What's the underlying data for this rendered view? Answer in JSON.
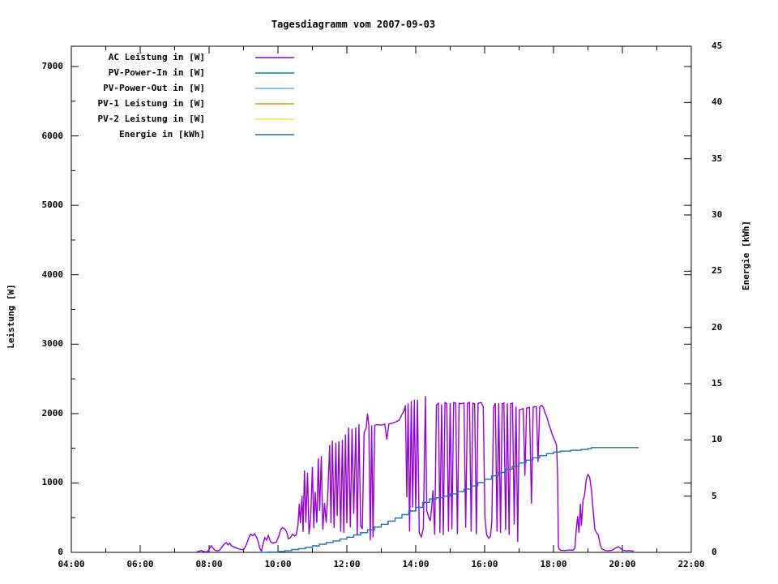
{
  "chart_data": {
    "type": "line",
    "title": "Tagesdiagramm vom 2007-09-03",
    "x_axis": {
      "unit": "time",
      "range_hours": [
        4,
        22
      ],
      "major_tick_hours": 2,
      "minor_tick_hours": 1,
      "tick_labels": [
        "04:00",
        "06:00",
        "08:00",
        "10:00",
        "12:00",
        "14:00",
        "16:00",
        "18:00",
        "20:00",
        "22:00"
      ]
    },
    "y1_axis": {
      "label": "Leistung [W]",
      "range": [
        0,
        7000
      ],
      "major_tick": 1000,
      "minor_tick": 500,
      "tick_labels": [
        "0",
        "1000",
        "2000",
        "3000",
        "4000",
        "5000",
        "6000",
        "7000"
      ]
    },
    "y2_axis": {
      "label": "Energie [kWh]",
      "range": [
        0,
        45
      ],
      "major_tick": 5,
      "tick_labels": [
        "0",
        "5",
        "10",
        "15",
        "20",
        "25",
        "30",
        "35",
        "40",
        "45"
      ]
    },
    "legend_position": "top-left-inside",
    "grid": false,
    "series": [
      {
        "name": "AC Leistung in [W]",
        "color": "#9400d3",
        "axis": "y1",
        "step": false,
        "points": [
          [
            7.63,
            2
          ],
          [
            7.7,
            18
          ],
          [
            7.78,
            25
          ],
          [
            7.85,
            12
          ],
          [
            7.95,
            8
          ],
          [
            8.02,
            60
          ],
          [
            8.06,
            95
          ],
          [
            8.1,
            70
          ],
          [
            8.15,
            38
          ],
          [
            8.22,
            22
          ],
          [
            8.3,
            28
          ],
          [
            8.4,
            95
          ],
          [
            8.45,
            125
          ],
          [
            8.5,
            140
          ],
          [
            8.55,
            108
          ],
          [
            8.6,
            132
          ],
          [
            8.65,
            95
          ],
          [
            8.72,
            78
          ],
          [
            8.8,
            62
          ],
          [
            8.9,
            44
          ],
          [
            9.0,
            36
          ],
          [
            9.08,
            110
          ],
          [
            9.15,
            205
          ],
          [
            9.2,
            262
          ],
          [
            9.27,
            238
          ],
          [
            9.32,
            268
          ],
          [
            9.38,
            215
          ],
          [
            9.43,
            148
          ],
          [
            9.47,
            58
          ],
          [
            9.52,
            16
          ],
          [
            9.57,
            125
          ],
          [
            9.62,
            212
          ],
          [
            9.67,
            178
          ],
          [
            9.72,
            242
          ],
          [
            9.78,
            158
          ],
          [
            9.85,
            132
          ],
          [
            9.95,
            148
          ],
          [
            10.02,
            225
          ],
          [
            10.08,
            330
          ],
          [
            10.13,
            355
          ],
          [
            10.2,
            338
          ],
          [
            10.25,
            298
          ],
          [
            10.3,
            196
          ],
          [
            10.36,
            212
          ],
          [
            10.42,
            262
          ],
          [
            10.48,
            236
          ],
          [
            10.53,
            255
          ],
          [
            10.58,
            380
          ],
          [
            10.62,
            700
          ],
          [
            10.65,
            420
          ],
          [
            10.7,
            815
          ],
          [
            10.73,
            295
          ],
          [
            10.77,
            1180
          ],
          [
            10.81,
            430
          ],
          [
            10.86,
            1150
          ],
          [
            10.9,
            262
          ],
          [
            10.95,
            515
          ],
          [
            11.0,
            1230
          ],
          [
            11.04,
            348
          ],
          [
            11.08,
            872
          ],
          [
            11.13,
            425
          ],
          [
            11.17,
            1352
          ],
          [
            11.21,
            598
          ],
          [
            11.26,
            1390
          ],
          [
            11.3,
            328
          ],
          [
            11.35,
            712
          ],
          [
            11.4,
            424
          ],
          [
            11.45,
            880
          ],
          [
            11.5,
            1545
          ],
          [
            11.54,
            420
          ],
          [
            11.58,
            1612
          ],
          [
            11.63,
            352
          ],
          [
            11.68,
            1580
          ],
          [
            11.72,
            525
          ],
          [
            11.77,
            1598
          ],
          [
            11.82,
            298
          ],
          [
            11.87,
            1622
          ],
          [
            11.91,
            282
          ],
          [
            11.96,
            1700
          ],
          [
            12.0,
            420
          ],
          [
            12.05,
            1798
          ],
          [
            12.1,
            362
          ],
          [
            12.15,
            1782
          ],
          [
            12.2,
            558
          ],
          [
            12.26,
            1800
          ],
          [
            12.3,
            242
          ],
          [
            12.35,
            1848
          ],
          [
            12.4,
            385
          ],
          [
            12.45,
            338
          ],
          [
            12.5,
            1725
          ],
          [
            12.56,
            1792
          ],
          [
            12.6,
            2000
          ],
          [
            12.64,
            1820
          ],
          [
            12.68,
            172
          ],
          [
            12.72,
            1830
          ],
          [
            12.76,
            218
          ],
          [
            12.81,
            1832
          ],
          [
            12.9,
            1840
          ],
          [
            13.0,
            1832
          ],
          [
            13.1,
            1848
          ],
          [
            13.16,
            1625
          ],
          [
            13.22,
            1850
          ],
          [
            13.32,
            1862
          ],
          [
            13.42,
            1880
          ],
          [
            13.52,
            1905
          ],
          [
            13.6,
            1988
          ],
          [
            13.66,
            2042
          ],
          [
            13.7,
            2118
          ],
          [
            13.74,
            795
          ],
          [
            13.78,
            2148
          ],
          [
            13.82,
            302
          ],
          [
            13.87,
            2180
          ],
          [
            13.91,
            648
          ],
          [
            13.96,
            2198
          ],
          [
            14.0,
            598
          ],
          [
            14.05,
            2200
          ],
          [
            14.1,
            282
          ],
          [
            14.16,
            222
          ],
          [
            14.22,
            348
          ],
          [
            14.28,
            2252
          ],
          [
            14.32,
            598
          ],
          [
            14.37,
            518
          ],
          [
            14.42,
            452
          ],
          [
            14.46,
            618
          ],
          [
            14.5,
            895
          ],
          [
            14.55,
            252
          ],
          [
            14.6,
            2122
          ],
          [
            14.66,
            2148
          ],
          [
            14.7,
            282
          ],
          [
            14.75,
            2132
          ],
          [
            14.8,
            248
          ],
          [
            14.85,
            2158
          ],
          [
            14.9,
            2142
          ],
          [
            14.95,
            298
          ],
          [
            15.0,
            2152
          ],
          [
            15.05,
            332
          ],
          [
            15.1,
            2158
          ],
          [
            15.16,
            2150
          ],
          [
            15.21,
            262
          ],
          [
            15.26,
            2148
          ],
          [
            15.32,
            2142
          ],
          [
            15.4,
            2152
          ],
          [
            15.45,
            352
          ],
          [
            15.5,
            2148
          ],
          [
            15.56,
            2160
          ],
          [
            15.61,
            298
          ],
          [
            15.66,
            2150
          ],
          [
            15.71,
            2140
          ],
          [
            15.76,
            262
          ],
          [
            15.81,
            2148
          ],
          [
            15.9,
            2160
          ],
          [
            15.96,
            2098
          ],
          [
            16.01,
            498
          ],
          [
            16.06,
            252
          ],
          [
            16.12,
            202
          ],
          [
            16.17,
            232
          ],
          [
            16.21,
            452
          ],
          [
            16.26,
            2098
          ],
          [
            16.31,
            2148
          ],
          [
            16.36,
            302
          ],
          [
            16.41,
            2150
          ],
          [
            16.46,
            282
          ],
          [
            16.51,
            2142
          ],
          [
            16.56,
            2150
          ],
          [
            16.61,
            322
          ],
          [
            16.66,
            2148
          ],
          [
            16.71,
            252
          ],
          [
            16.76,
            2142
          ],
          [
            16.81,
            2150
          ],
          [
            16.86,
            402
          ],
          [
            16.91,
            2100
          ],
          [
            16.96,
            152
          ],
          [
            17.01,
            2052
          ],
          [
            17.06,
            2062
          ],
          [
            17.12,
            2072
          ],
          [
            17.17,
            1102
          ],
          [
            17.22,
            2078
          ],
          [
            17.3,
            2088
          ],
          [
            17.36,
            702
          ],
          [
            17.41,
            2092
          ],
          [
            17.5,
            2102
          ],
          [
            17.55,
            1302
          ],
          [
            17.6,
            2098
          ],
          [
            17.66,
            2118
          ],
          [
            17.71,
            2082
          ],
          [
            17.76,
            2002
          ],
          [
            17.81,
            1948
          ],
          [
            17.86,
            1852
          ],
          [
            17.91,
            1782
          ],
          [
            17.96,
            1702
          ],
          [
            18.01,
            1642
          ],
          [
            18.06,
            1582
          ],
          [
            18.09,
            1538
          ],
          [
            18.12,
            1098
          ],
          [
            18.14,
            78
          ],
          [
            18.17,
            42
          ],
          [
            18.22,
            30
          ],
          [
            18.32,
            26
          ],
          [
            18.42,
            32
          ],
          [
            18.52,
            34
          ],
          [
            18.57,
            30
          ],
          [
            18.62,
            62
          ],
          [
            18.66,
            322
          ],
          [
            18.7,
            522
          ],
          [
            18.74,
            282
          ],
          [
            18.78,
            700
          ],
          [
            18.81,
            382
          ],
          [
            18.86,
            752
          ],
          [
            18.9,
            822
          ],
          [
            18.95,
            1052
          ],
          [
            19.0,
            1122
          ],
          [
            19.05,
            1082
          ],
          [
            19.1,
            902
          ],
          [
            19.15,
            602
          ],
          [
            19.2,
            332
          ],
          [
            19.25,
            282
          ],
          [
            19.3,
            248
          ],
          [
            19.35,
            122
          ],
          [
            19.4,
            52
          ],
          [
            19.5,
            26
          ],
          [
            19.6,
            22
          ],
          [
            19.7,
            32
          ],
          [
            19.8,
            62
          ],
          [
            19.88,
            82
          ],
          [
            19.95,
            56
          ],
          [
            20.02,
            32
          ],
          [
            20.1,
            22
          ],
          [
            20.2,
            26
          ],
          [
            20.33,
            16
          ]
        ]
      },
      {
        "name": "PV-Power-In in [W]",
        "color": "#008b8b",
        "axis": "y1",
        "step": false,
        "points": []
      },
      {
        "name": "PV-Power-Out in [W]",
        "color": "#56b4e9",
        "axis": "y1",
        "step": false,
        "points": []
      },
      {
        "name": "PV-1 Leistung in [W]",
        "color": "#e69500",
        "axis": "y1",
        "step": false,
        "points": []
      },
      {
        "name": "PV-2 Leistung in [W]",
        "color": "#efe44f",
        "axis": "y1",
        "step": false,
        "points": []
      },
      {
        "name": "Energie in [kWh]",
        "color": "#1f6fb4",
        "axis": "y2",
        "step": true,
        "points": [
          [
            9.4,
            0
          ],
          [
            9.7,
            0.03
          ],
          [
            10.0,
            0.08
          ],
          [
            10.2,
            0.15
          ],
          [
            10.4,
            0.25
          ],
          [
            10.6,
            0.33
          ],
          [
            10.8,
            0.45
          ],
          [
            11.0,
            0.58
          ],
          [
            11.2,
            0.72
          ],
          [
            11.4,
            0.88
          ],
          [
            11.6,
            1.02
          ],
          [
            11.8,
            1.18
          ],
          [
            12.0,
            1.35
          ],
          [
            12.2,
            1.55
          ],
          [
            12.4,
            1.75
          ],
          [
            12.6,
            2.0
          ],
          [
            12.8,
            2.25
          ],
          [
            13.0,
            2.5
          ],
          [
            13.2,
            2.78
          ],
          [
            13.4,
            3.05
          ],
          [
            13.6,
            3.35
          ],
          [
            13.8,
            3.68
          ],
          [
            14.0,
            4.0
          ],
          [
            14.2,
            4.45
          ],
          [
            14.4,
            4.75
          ],
          [
            14.6,
            4.85
          ],
          [
            14.8,
            5.0
          ],
          [
            15.0,
            5.2
          ],
          [
            15.2,
            5.4
          ],
          [
            15.4,
            5.62
          ],
          [
            15.6,
            5.9
          ],
          [
            15.8,
            6.2
          ],
          [
            16.0,
            6.5
          ],
          [
            16.2,
            6.8
          ],
          [
            16.4,
            7.1
          ],
          [
            16.6,
            7.4
          ],
          [
            16.8,
            7.65
          ],
          [
            17.0,
            7.95
          ],
          [
            17.2,
            8.2
          ],
          [
            17.4,
            8.4
          ],
          [
            17.6,
            8.6
          ],
          [
            17.8,
            8.78
          ],
          [
            18.0,
            8.92
          ],
          [
            18.2,
            9.0
          ],
          [
            18.5,
            9.08
          ],
          [
            18.8,
            9.15
          ],
          [
            19.0,
            9.22
          ],
          [
            19.1,
            9.32
          ],
          [
            20.47,
            9.32
          ]
        ]
      }
    ]
  }
}
